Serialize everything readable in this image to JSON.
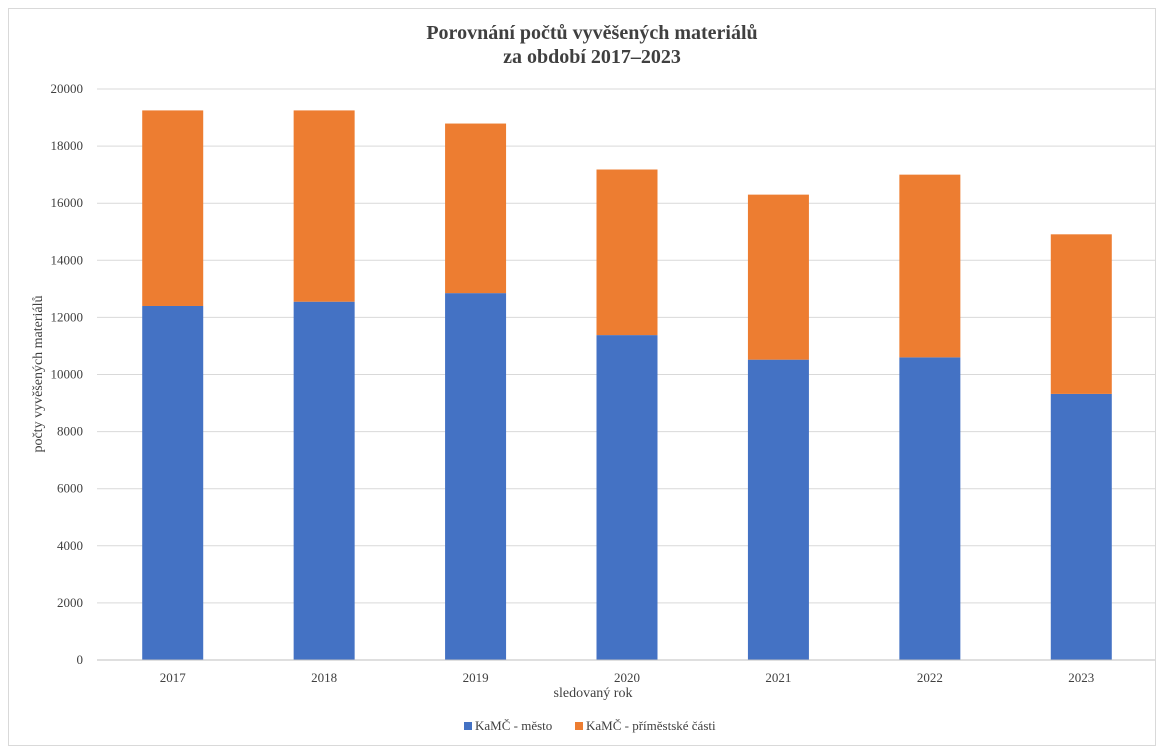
{
  "chart_data": {
    "type": "bar",
    "stacked": true,
    "title_lines": [
      "Porovnání počtů vyvěšených materiálů",
      "za období 2017–2023"
    ],
    "xlabel": "sledovaný rok",
    "ylabel": "počty vyvěšených materiálů",
    "categories": [
      "2017",
      "2018",
      "2019",
      "2020",
      "2021",
      "2022",
      "2023"
    ],
    "series": [
      {
        "name": "KaMČ - město",
        "color": "#4472C4",
        "values": [
          12400,
          12550,
          12850,
          11380,
          10520,
          10600,
          9320
        ]
      },
      {
        "name": "KaMČ - příměstské části",
        "color": "#ED7D31",
        "values": [
          6850,
          6700,
          5940,
          5800,
          5780,
          6400,
          5590
        ]
      }
    ],
    "ylim": [
      0,
      20000
    ],
    "yticks": [
      "0",
      "2000",
      "4000",
      "6000",
      "8000",
      "10000",
      "12000",
      "14000",
      "16000",
      "18000",
      "20000"
    ],
    "grid": true,
    "legend_position": "bottom"
  }
}
